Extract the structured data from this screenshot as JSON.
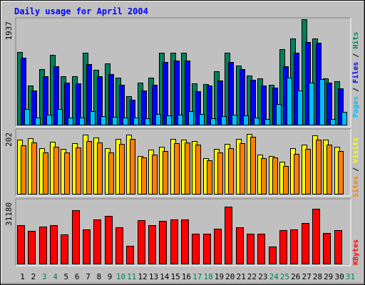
{
  "title": "Daily usage for April 2004",
  "colors": {
    "hits": "#00805c",
    "files": "#0000ff",
    "pages": "#00c0ff",
    "visits": "#ffff00",
    "sites": "#ff8000",
    "kbytes": "#ff0000",
    "weekend_day": "#00805c",
    "weekday": "#000000",
    "frame_bg": "#c0c0c0",
    "title": "#0000ff"
  },
  "legend": {
    "pages": "Pages",
    "files": "Files",
    "hits": "Hits",
    "sep": " / ",
    "sites": "Sites",
    "visits": "Visits",
    "kbytes": "KBytes"
  },
  "chart_data": {
    "type": "bar",
    "title": "Daily usage for April 2004",
    "categories": [
      "1",
      "2",
      "3",
      "4",
      "5",
      "6",
      "7",
      "8",
      "9",
      "10",
      "11",
      "12",
      "13",
      "14",
      "15",
      "16",
      "17",
      "18",
      "19",
      "20",
      "21",
      "22",
      "23",
      "24",
      "25",
      "26",
      "27",
      "28",
      "29",
      "30",
      "31"
    ],
    "weekend_days": [
      3,
      4,
      10,
      11,
      17,
      18,
      24,
      25,
      31
    ],
    "panels": [
      {
        "name": "hits-files-pages",
        "ymax_label": "1937",
        "ylim": [
          0,
          1937
        ],
        "series": [
          {
            "name": "Hits",
            "values": [
              1350,
              730,
              1040,
              1300,
              900,
              900,
              1330,
              1020,
              1140,
              880,
              540,
              790,
              880,
              1330,
              1330,
              1330,
              770,
              760,
              990,
              1330,
              1100,
              920,
              870,
              750,
              1400,
              1600,
              1950,
              1600,
              860,
              810,
              0
            ]
          },
          {
            "name": "Files",
            "values": [
              1240,
              640,
              900,
              1090,
              780,
              770,
              1120,
              900,
              940,
              750,
              470,
              640,
              750,
              1170,
              1190,
              1190,
              630,
              730,
              830,
              1160,
              1030,
              840,
              730,
              700,
              1080,
              1330,
              1530,
              1520,
              780,
              680,
              0
            ]
          },
          {
            "name": "Pages",
            "values": [
              300,
              150,
              200,
              300,
              150,
              150,
              260,
              170,
              160,
              150,
              140,
              130,
              210,
              180,
              200,
              260,
              210,
              130,
              170,
              190,
              180,
              140,
              120,
              390,
              880,
              640,
              780,
              850,
              120,
              250,
              0
            ]
          }
        ]
      },
      {
        "name": "visits-sites",
        "ymax_label": "202",
        "ylim": [
          0,
          202
        ],
        "series": [
          {
            "name": "Visits",
            "values": [
              174,
              180,
              148,
              169,
              145,
              164,
              190,
              181,
              148,
              178,
              190,
              122,
              143,
              151,
              178,
              175,
              170,
              115,
              145,
              162,
              176,
              193,
              126,
              123,
              104,
              147,
              158,
              188,
              174,
              153,
              0
            ]
          },
          {
            "name": "Sites",
            "values": [
              156,
              165,
              133,
              152,
              134,
              149,
              171,
              165,
              135,
              162,
              177,
              117,
              128,
              139,
              163,
              165,
              159,
              109,
              133,
              147,
              163,
              184,
              115,
              117,
              91,
              130,
              145,
              174,
              160,
              139,
              0
            ]
          }
        ]
      },
      {
        "name": "kbytes",
        "ymax_label": "31180",
        "ylim": [
          0,
          31180
        ],
        "series": [
          {
            "name": "KBytes",
            "values": [
              19400,
              16300,
              18700,
              19100,
              14800,
              26700,
              17300,
              22100,
              23800,
              18100,
              9000,
              21700,
              19300,
              21200,
              22000,
              22100,
              14900,
              14900,
              17400,
              28500,
              18100,
              14900,
              14900,
              8600,
              16700,
              17300,
              20300,
              27400,
              15400,
              16800,
              0
            ]
          }
        ]
      }
    ]
  }
}
